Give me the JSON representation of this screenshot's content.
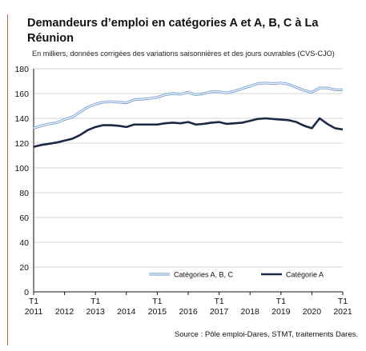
{
  "chart_data": {
    "type": "line",
    "title": "Demandeurs d’emploi en catégories A et A, B, C à La Réunion",
    "subtitle": "En milliers, données corrigées des variations saisonnières et des jours ouvrables (CVS-CJO)",
    "ylim": [
      0,
      180
    ],
    "yticks": [
      0,
      20,
      40,
      60,
      80,
      100,
      120,
      140,
      160,
      180
    ],
    "xticks": [
      {
        "top": "T1",
        "bottom": "2011"
      },
      {
        "top": "",
        "bottom": "2012"
      },
      {
        "top": "T1",
        "bottom": "2013"
      },
      {
        "top": "",
        "bottom": "2014"
      },
      {
        "top": "T1",
        "bottom": "2015"
      },
      {
        "top": "",
        "bottom": "2016"
      },
      {
        "top": "T1",
        "bottom": "2017"
      },
      {
        "top": "",
        "bottom": "2018"
      },
      {
        "top": "T1",
        "bottom": "2019"
      },
      {
        "top": "",
        "bottom": "2020"
      },
      {
        "top": "T1",
        "bottom": "2021"
      }
    ],
    "x": [
      "2011T1",
      "2011T2",
      "2011T3",
      "2011T4",
      "2012T1",
      "2012T2",
      "2012T3",
      "2012T4",
      "2013T1",
      "2013T2",
      "2013T3",
      "2013T4",
      "2014T1",
      "2014T2",
      "2014T3",
      "2014T4",
      "2015T1",
      "2015T2",
      "2015T3",
      "2015T4",
      "2016T1",
      "2016T2",
      "2016T3",
      "2016T4",
      "2017T1",
      "2017T2",
      "2017T3",
      "2017T4",
      "2018T1",
      "2018T2",
      "2018T3",
      "2018T4",
      "2019T1",
      "2019T2",
      "2019T3",
      "2019T4",
      "2020T1",
      "2020T2",
      "2020T3",
      "2020T4",
      "2021T1"
    ],
    "series": [
      {
        "name": "Catégories A, B, C",
        "color": "#7ea6d8",
        "style": "double",
        "values": [
          132,
          134,
          135.5,
          136.5,
          139,
          141,
          145,
          149,
          151.5,
          153,
          153.5,
          153,
          152.5,
          155,
          155.5,
          156,
          157,
          159,
          160,
          159.5,
          161,
          159,
          160,
          161.5,
          161.5,
          160.5,
          162,
          164,
          166,
          168,
          168.5,
          168,
          168.5,
          167.5,
          165,
          162.5,
          161,
          164.5,
          164.5,
          163,
          163
        ]
      },
      {
        "name": "Catégorie A",
        "color": "#1a2a44",
        "style": "solid",
        "values": [
          117,
          118.5,
          119.5,
          120.5,
          122,
          123.5,
          126.5,
          130.5,
          133,
          134.5,
          134.5,
          134,
          133,
          135,
          135,
          135,
          135,
          136,
          136.5,
          136,
          137,
          135,
          135.5,
          136.5,
          137,
          135.5,
          136,
          136.5,
          138,
          139.5,
          140,
          139.5,
          139,
          138.5,
          137,
          134,
          132,
          140,
          135.5,
          132,
          131
        ]
      }
    ],
    "legend_position": "bottom-right",
    "source": "Source : Pôle emploi-Dares, STMT, traitements Dares."
  }
}
